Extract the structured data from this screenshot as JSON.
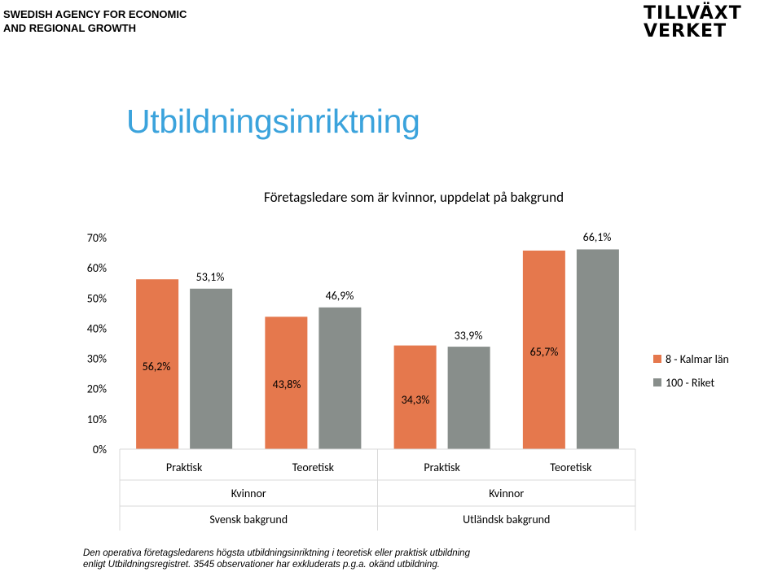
{
  "header": {
    "agency_line1": "SWEDISH AGENCY FOR ECONOMIC",
    "agency_line2": "AND REGIONAL GROWTH",
    "logo_line1": "TILLVÄXT",
    "logo_line2": "VERKET"
  },
  "page": {
    "title": "Utbildningsinriktning"
  },
  "colors": {
    "title": "#3ba3dc",
    "series_kalmar": "#e5784d",
    "series_riket": "#888e8b",
    "grid": "#d9d9d9"
  },
  "chart_data": {
    "type": "bar",
    "title": "Företagsledare som är kvinnor, uppdelat på bakgrund",
    "ylim": [
      0,
      70
    ],
    "yticks": [
      "0%",
      "10%",
      "20%",
      "30%",
      "40%",
      "50%",
      "60%",
      "70%"
    ],
    "categories": [
      "Praktisk",
      "Teoretisk",
      "Praktisk",
      "Teoretisk"
    ],
    "group_level2": [
      "Kvinnor",
      "Kvinnor"
    ],
    "group_level3": [
      "Svensk bakgrund",
      "Utländsk bakgrund"
    ],
    "series": [
      {
        "name": "8 - Kalmar län",
        "values": [
          56.2,
          43.8,
          34.3,
          65.7
        ]
      },
      {
        "name": "100 - Riket",
        "values": [
          53.1,
          46.9,
          33.9,
          66.1
        ]
      }
    ],
    "series_labels": [
      [
        "56,2%",
        "43,8%",
        "34,3%",
        "65,7%"
      ],
      [
        "53,1%",
        "46,9%",
        "33,9%",
        "66,1%"
      ]
    ],
    "legend_position": "right",
    "grid": false
  },
  "footnote": {
    "line1": "Den operativa företagsledarens högsta utbildningsinriktning i teoretisk eller praktisk utbildning",
    "line2": "enligt Utbildningsregistret. 3545 observationer har exkluderats p.g.a. okänd utbildning."
  }
}
